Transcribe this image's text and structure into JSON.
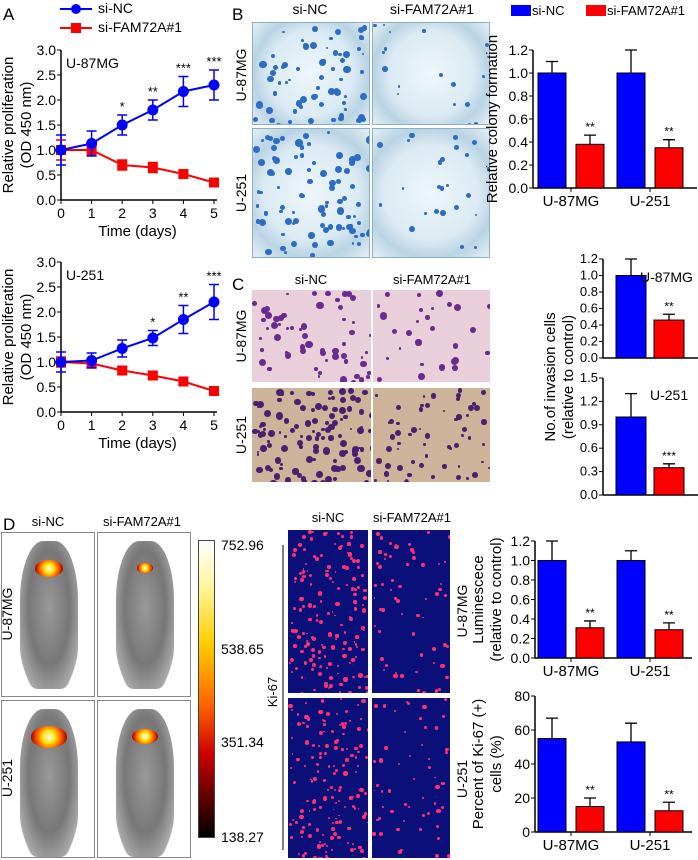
{
  "panels": {
    "A": "A",
    "B": "B",
    "C": "C",
    "D": "D"
  },
  "colors": {
    "si_nc": "#0000ff",
    "si_fam": "#ff0000"
  },
  "legend": {
    "si_nc": "si-NC",
    "si_fam": "si-FAM72A#1"
  },
  "photo_labels": {
    "B": {
      "cols": [
        "si-NC",
        "si-FAM72A#1"
      ],
      "rows": [
        "U-87MG",
        "U-251"
      ]
    },
    "C": {
      "cols": [
        "si-NC",
        "si-FAM72A#1"
      ],
      "rows": [
        "U-87MG",
        "U-251"
      ]
    },
    "D_mice": {
      "cols": [
        "si-NC",
        "si-FAM72A#1"
      ],
      "rows": [
        "U-87MG",
        "U-251"
      ]
    },
    "D_ki67": {
      "cols": [
        "si-NC",
        "si-FAM72A#1"
      ],
      "rows": [
        "U-87MG",
        "U-251"
      ],
      "stain": "Ki-67"
    }
  },
  "colorbar": {
    "ticks": [
      "752.96",
      "538.65",
      "351.34",
      "138.27"
    ]
  },
  "chart_data": [
    {
      "id": "A1",
      "type": "line",
      "annotation": "U-87MG",
      "xlabel": "Time (days)",
      "ylabel": "Relative proliferation (OD 450 nm)",
      "x": [
        0,
        1,
        2,
        3,
        4,
        5
      ],
      "xticks": [
        "0",
        "1",
        "2",
        "3",
        "4",
        "5"
      ],
      "ylim": [
        0,
        3
      ],
      "yticks": [
        "0.0",
        "0.5",
        "1.0",
        "1.5",
        "2.0",
        "2.5",
        "3.0"
      ],
      "series": [
        {
          "name": "si-NC",
          "values": [
            1.0,
            1.13,
            1.5,
            1.8,
            2.17,
            2.3
          ],
          "err": [
            0.3,
            0.25,
            0.2,
            0.2,
            0.3,
            0.3
          ]
        },
        {
          "name": "si-FAM72A#1",
          "values": [
            1.0,
            1.0,
            0.7,
            0.65,
            0.52,
            0.35
          ],
          "err": [
            0.2,
            0.1,
            0.1,
            0.1,
            0.07,
            0.08
          ]
        }
      ],
      "significance": [
        "",
        "",
        "*",
        "**",
        "***",
        "***"
      ]
    },
    {
      "id": "A2",
      "type": "line",
      "annotation": "U-251",
      "xlabel": "Time (days)",
      "ylabel": "Relative proliferation (OD 450 nm)",
      "x": [
        0,
        1,
        2,
        3,
        4,
        5
      ],
      "xticks": [
        "0",
        "1",
        "2",
        "3",
        "4",
        "5"
      ],
      "ylim": [
        0,
        3
      ],
      "yticks": [
        "0.0",
        "0.5",
        "1.0",
        "1.5",
        "2.0",
        "2.5",
        "3.0"
      ],
      "series": [
        {
          "name": "si-NC",
          "values": [
            1.0,
            1.03,
            1.27,
            1.48,
            1.85,
            2.2
          ],
          "err": [
            0.2,
            0.15,
            0.17,
            0.15,
            0.28,
            0.35
          ]
        },
        {
          "name": "si-FAM72A#1",
          "values": [
            1.0,
            0.97,
            0.83,
            0.73,
            0.61,
            0.42
          ],
          "err": [
            0.1,
            0.08,
            0.08,
            0.08,
            0.06,
            0.06
          ]
        }
      ],
      "significance": [
        "",
        "",
        "",
        "*",
        "**",
        "***"
      ]
    },
    {
      "id": "B",
      "type": "bar",
      "ylabel": "Relative colony formation",
      "categories": [
        "U-87MG",
        "U-251"
      ],
      "ylim": [
        0,
        1.2
      ],
      "yticks": [
        "0.0",
        "0.2",
        "0.4",
        "0.6",
        "0.8",
        "1.0",
        "1.2"
      ],
      "series": [
        {
          "name": "si-NC",
          "values": [
            1.0,
            1.0
          ],
          "err": [
            0.1,
            0.2
          ]
        },
        {
          "name": "si-FAM72A#1",
          "values": [
            0.38,
            0.35
          ],
          "err": [
            0.08,
            0.07
          ]
        }
      ],
      "significance": [
        "**",
        "**"
      ]
    },
    {
      "id": "C1",
      "type": "bar",
      "annotation": "U-87MG",
      "categories": [
        ""
      ],
      "ylim": [
        0,
        1.2
      ],
      "yticks": [
        "0.0",
        "0.2",
        "0.4",
        "0.6",
        "0.8",
        "1.0",
        "1.2"
      ],
      "series": [
        {
          "name": "si-NC",
          "values": [
            1.0
          ],
          "err": [
            0.2
          ]
        },
        {
          "name": "si-FAM72A#1",
          "values": [
            0.46
          ],
          "err": [
            0.07
          ]
        }
      ],
      "significance": [
        "**"
      ]
    },
    {
      "id": "C2",
      "type": "bar",
      "annotation": "U-251",
      "ylabel": "No.of invasion cells (relative to control)",
      "categories": [
        ""
      ],
      "ylim": [
        0,
        1.5
      ],
      "yticks": [
        "0.0",
        "0.3",
        "0.6",
        "0.9",
        "1.2",
        "1.5"
      ],
      "series": [
        {
          "name": "si-NC",
          "values": [
            1.0
          ],
          "err": [
            0.3
          ]
        },
        {
          "name": "si-FAM72A#1",
          "values": [
            0.35
          ],
          "err": [
            0.05
          ]
        }
      ],
      "significance": [
        "***"
      ]
    },
    {
      "id": "D1",
      "type": "bar",
      "ylabel": "Luminescece (relative to control)",
      "categories": [
        "U-87MG",
        "U-251"
      ],
      "ylim": [
        0,
        1.2
      ],
      "yticks": [
        "0.0",
        "0.2",
        "0.4",
        "0.6",
        "0.8",
        "1.0",
        "1.2"
      ],
      "series": [
        {
          "name": "si-NC",
          "values": [
            1.0,
            1.0
          ],
          "err": [
            0.2,
            0.1
          ]
        },
        {
          "name": "si-FAM72A#1",
          "values": [
            0.31,
            0.29
          ],
          "err": [
            0.07,
            0.07
          ]
        }
      ],
      "significance": [
        "**",
        "**"
      ]
    },
    {
      "id": "D2",
      "type": "bar",
      "ylabel": "Percent of Ki-67 (+) cells (%)",
      "categories": [
        "U-87MG",
        "U-251"
      ],
      "ylim": [
        0,
        80
      ],
      "yticks": [
        "0",
        "20",
        "40",
        "60",
        "80"
      ],
      "series": [
        {
          "name": "si-NC",
          "values": [
            55,
            53
          ],
          "err": [
            12,
            11
          ]
        },
        {
          "name": "si-FAM72A#1",
          "values": [
            15,
            12.5
          ],
          "err": [
            5,
            5
          ]
        }
      ],
      "significance": [
        "**",
        "**"
      ]
    }
  ]
}
